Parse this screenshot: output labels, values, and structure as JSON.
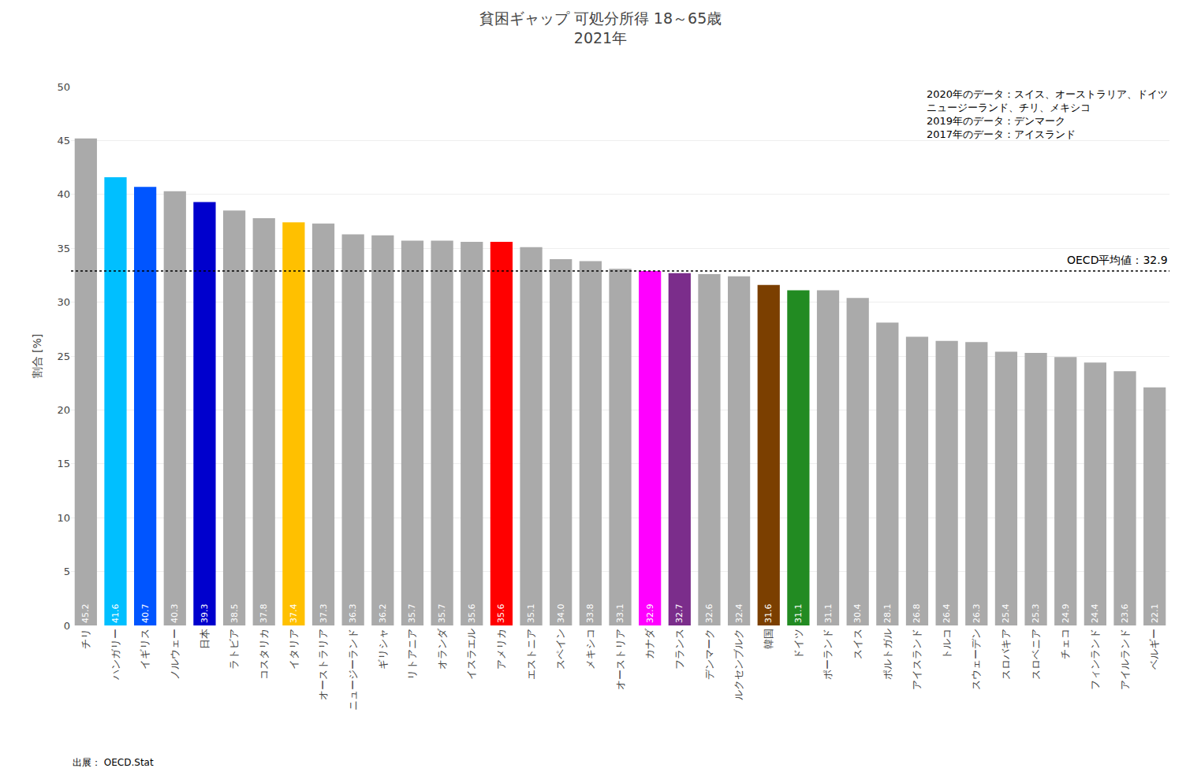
{
  "chart_data": {
    "type": "bar",
    "title": "貧困ギャップ 可処分所得 18～65歳",
    "subtitle": "2021年",
    "ylabel": "割合 [%]",
    "source": "出展： OECD.Stat",
    "annotations": [
      "2020年のデータ：スイス、オーストラリア、ドイツ",
      "ニュージーランド、チリ、メキシコ",
      "2019年のデータ：デンマーク",
      "2017年のデータ：アイスランド"
    ],
    "average_line": {
      "value": 32.9,
      "label": "OECD平均値：32.9"
    },
    "categories": [
      "チリ",
      "ハンガリー",
      "イギリス",
      "ノルウェー",
      "日本",
      "ラトビア",
      "コスタリカ",
      "イタリア",
      "オーストラリア",
      "ニュージーランド",
      "ギリシャ",
      "リトアニア",
      "オランダ",
      "イスラエル",
      "アメリカ",
      "エストニア",
      "スペイン",
      "メキシコ",
      "オーストリア",
      "カナダ",
      "フランス",
      "デンマーク",
      "ルクセンブルク",
      "韓国",
      "ドイツ",
      "ポーランド",
      "スイス",
      "ポルトガル",
      "アイスランド",
      "トルコ",
      "スウェーデン",
      "スロバキア",
      "スロベニア",
      "チェコ",
      "フィンランド",
      "アイルランド",
      "ベルギー"
    ],
    "values": [
      45.2,
      41.6,
      40.7,
      40.3,
      39.3,
      38.5,
      37.8,
      37.4,
      37.3,
      36.3,
      36.2,
      35.7,
      35.7,
      35.6,
      35.6,
      35.1,
      34.0,
      33.8,
      33.1,
      32.9,
      32.7,
      32.6,
      32.4,
      31.6,
      31.1,
      31.1,
      30.4,
      28.1,
      26.8,
      26.4,
      26.3,
      25.4,
      25.3,
      24.9,
      24.4,
      23.6,
      22.1
    ],
    "value_labels": [
      "45.2",
      "41.6",
      "40.7",
      "40.3",
      "39.3",
      "38.5",
      "37.8",
      "37.4",
      "37.3",
      "36.3",
      "36.2",
      "35.7",
      "35.7",
      "35.6",
      "35.6",
      "35.1",
      "34.0",
      "33.8",
      "33.1",
      "32.9",
      "32.7",
      "32.6",
      "32.4",
      "31.6",
      "31.1",
      "31.1",
      "30.4",
      "28.1",
      "26.8",
      "26.4",
      "26.3",
      "25.4",
      "25.3",
      "24.9",
      "24.4",
      "23.6",
      "22.1"
    ],
    "colors": [
      "#aaaaaa",
      "#00bfff",
      "#0055ff",
      "#aaaaaa",
      "#0000cd",
      "#aaaaaa",
      "#aaaaaa",
      "#ffc000",
      "#aaaaaa",
      "#aaaaaa",
      "#aaaaaa",
      "#aaaaaa",
      "#aaaaaa",
      "#aaaaaa",
      "#ff0000",
      "#aaaaaa",
      "#aaaaaa",
      "#aaaaaa",
      "#aaaaaa",
      "#ff00ff",
      "#7b2d8b",
      "#aaaaaa",
      "#aaaaaa",
      "#7b3f00",
      "#228b22",
      "#aaaaaa",
      "#aaaaaa",
      "#aaaaaa",
      "#aaaaaa",
      "#aaaaaa",
      "#aaaaaa",
      "#aaaaaa",
      "#aaaaaa",
      "#aaaaaa",
      "#aaaaaa",
      "#aaaaaa",
      "#aaaaaa"
    ],
    "ylim": [
      0,
      50
    ],
    "yticks": [
      0,
      5,
      10,
      15,
      20,
      25,
      30,
      35,
      40,
      45,
      50
    ],
    "grid": true,
    "data_labels": true
  }
}
